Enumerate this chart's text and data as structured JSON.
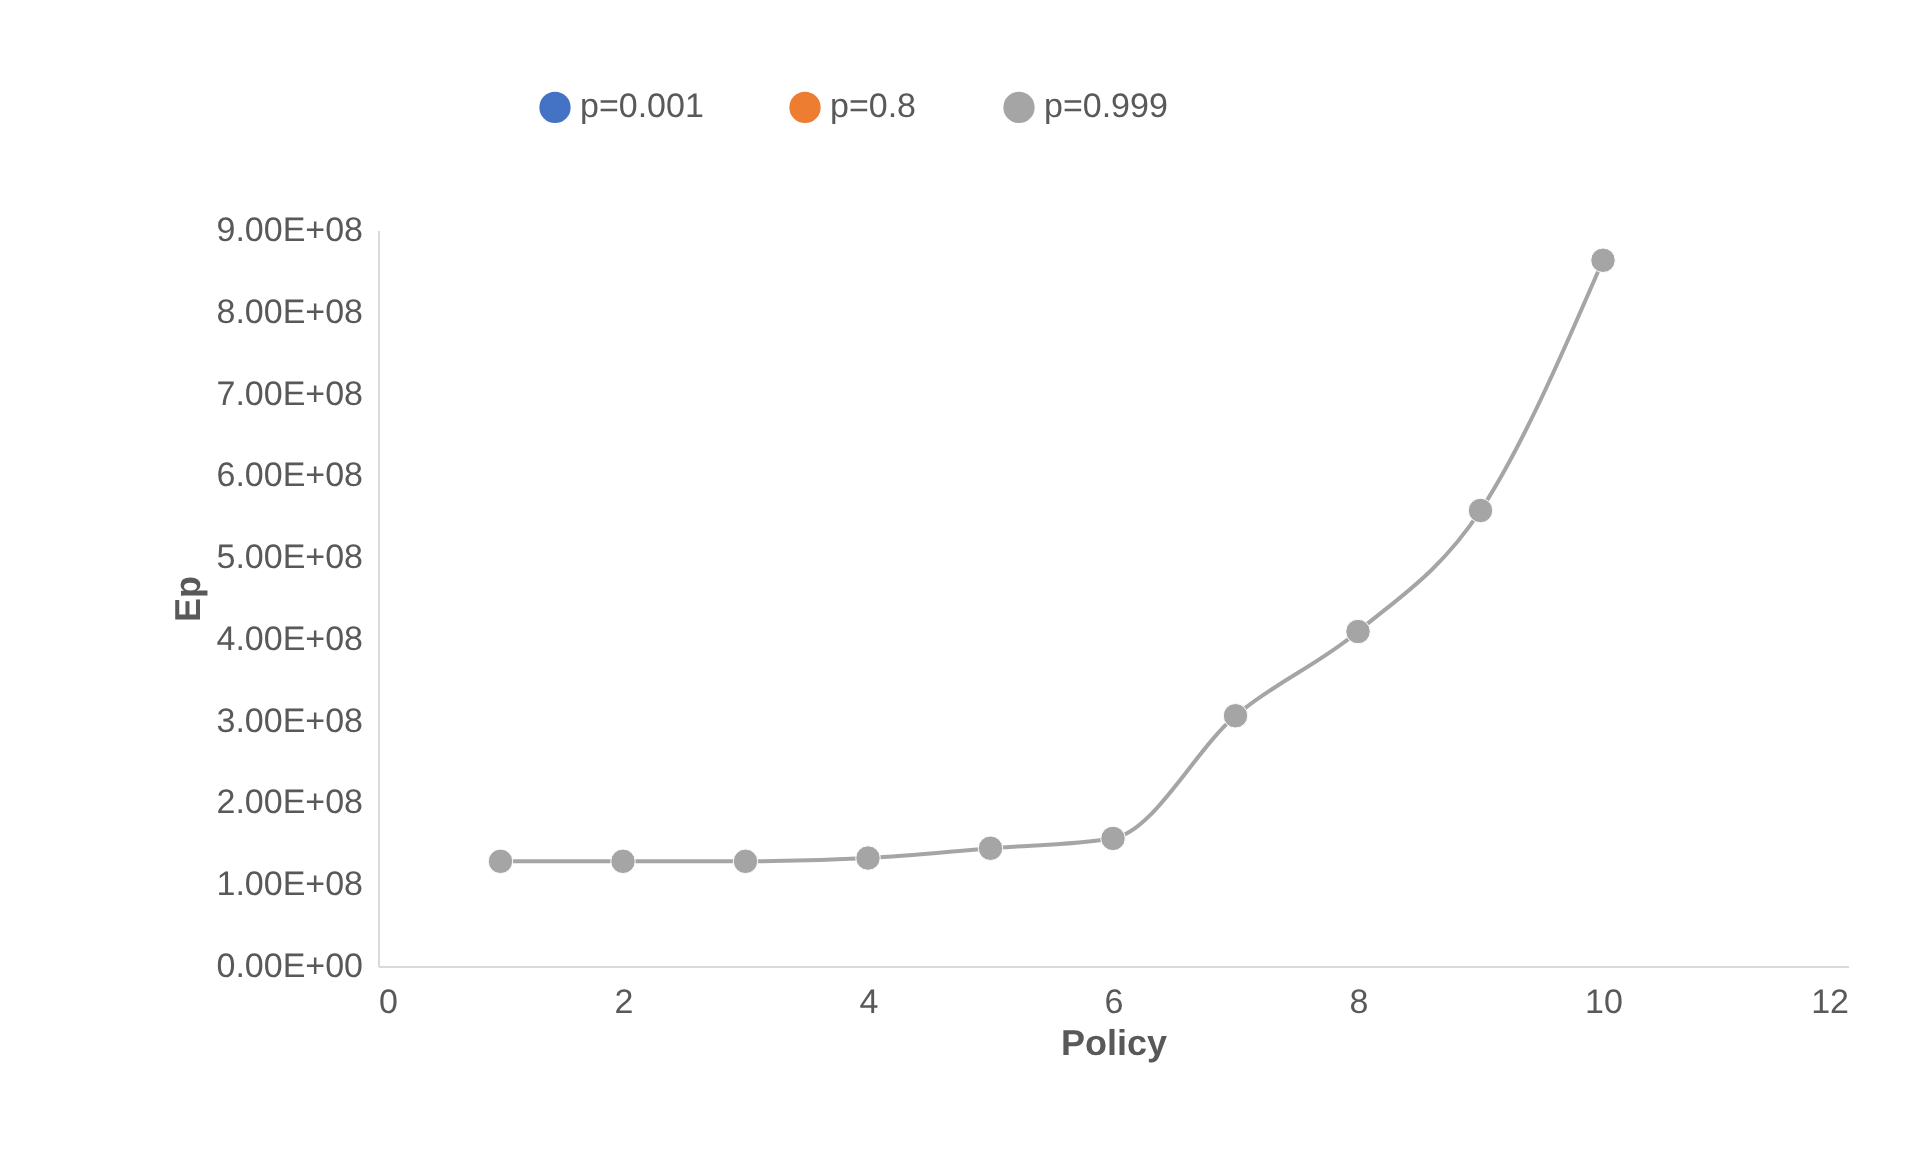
{
  "chart_data": {
    "type": "line",
    "xlabel": "Policy",
    "ylabel": "Ep",
    "x": [
      1,
      2,
      3,
      4,
      5,
      6,
      7,
      8,
      9,
      10
    ],
    "series": [
      {
        "name": "p=0.001",
        "color": "#4472c4",
        "values": [
          null,
          null,
          null,
          null,
          null,
          null,
          null,
          null,
          null,
          null
        ]
      },
      {
        "name": "p=0.8",
        "color": "#ed7d31",
        "values": [
          null,
          null,
          null,
          null,
          null,
          null,
          null,
          null,
          null,
          null
        ]
      },
      {
        "name": "p=0.999",
        "color": "#a5a5a5",
        "values": [
          128000000,
          128000000,
          128000000,
          132000000,
          144000000,
          156000000,
          306000000,
          409000000,
          557000000,
          863000000
        ]
      }
    ],
    "xlim": [
      0,
      12
    ],
    "xticks": [
      0,
      2,
      4,
      6,
      8,
      10,
      12
    ],
    "ylim": [
      0,
      900000000
    ],
    "yticks": [
      {
        "value": 0,
        "label": "0.00E+00"
      },
      {
        "value": 100000000,
        "label": "1.00E+08"
      },
      {
        "value": 200000000,
        "label": "2.00E+08"
      },
      {
        "value": 300000000,
        "label": "3.00E+08"
      },
      {
        "value": 400000000,
        "label": "4.00E+08"
      },
      {
        "value": 500000000,
        "label": "5.00E+08"
      },
      {
        "value": 600000000,
        "label": "6.00E+08"
      },
      {
        "value": 700000000,
        "label": "7.00E+08"
      },
      {
        "value": 800000000,
        "label": "8.00E+08"
      },
      {
        "value": 900000000,
        "label": "9.00E+08"
      }
    ],
    "grid": false,
    "legend": "top",
    "marker": "circle",
    "line_style": "solid"
  }
}
